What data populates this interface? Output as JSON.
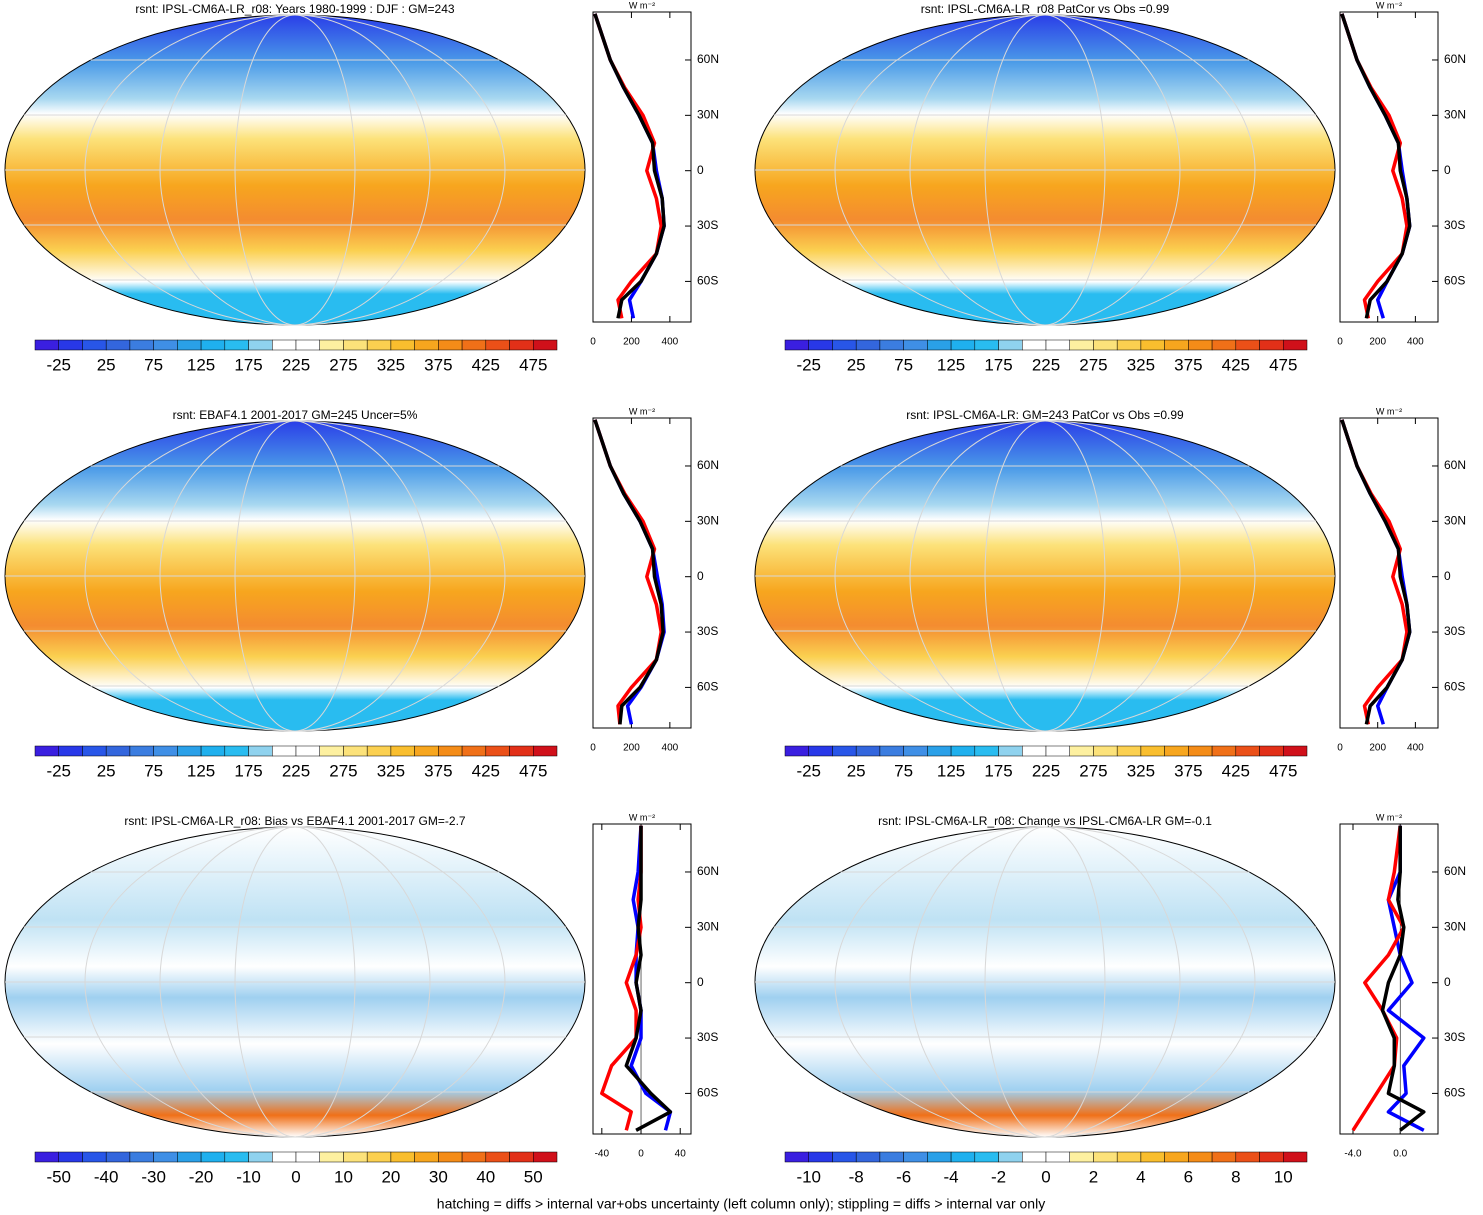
{
  "colormap": [
    "#3a1fe0",
    "#2838e8",
    "#2856e8",
    "#3366dd",
    "#3b7de0",
    "#3f8fe6",
    "#2aa0e8",
    "#1fb0ee",
    "#29bcf0",
    "#8fd2ee",
    "#ffffff",
    "#ffffff",
    "#fdf0a0",
    "#fce27a",
    "#fbd050",
    "#f9be2e",
    "#f7a61e",
    "#f48c18",
    "#f07018",
    "#eb5018",
    "#e23018",
    "#d0101a"
  ],
  "footer": "hatching = diffs > internal var+obs uncertainty (left column only); stippling = diffs > internal var only",
  "chart_data": [
    {
      "type": "map",
      "title": "rsnt: IPSL-CM6A-LR_r08: Years 1980-1999 : DJF : GM=243",
      "colorbar_labels": [
        -25,
        25,
        75,
        125,
        175,
        225,
        275,
        325,
        375,
        425,
        475
      ],
      "profile": {
        "type": "line",
        "unit": "W m⁻²",
        "lat": [
          -80,
          -70,
          -60,
          -45,
          -30,
          -15,
          0,
          15,
          30,
          45,
          60,
          85
        ],
        "ylim": [
          -82,
          86
        ],
        "yticks": [
          {
            "value": 60,
            "label": "60N"
          },
          {
            "value": 30,
            "label": "30N"
          },
          0,
          {
            "value": -30,
            "label": "30S"
          },
          {
            "value": -60,
            "label": "60S"
          }
        ],
        "xlim": [
          0,
          510
        ],
        "xticks": [
          0,
          200,
          400
        ],
        "series": [
          {
            "color": "#0000ff",
            "values": [
              210,
              190,
              250,
              330,
              370,
              360,
              330,
              310,
              240,
              160,
              90,
              10
            ]
          },
          {
            "color": "#ff0000",
            "values": [
              150,
              130,
              200,
              330,
              355,
              330,
              280,
              320,
              260,
              165,
              90,
              10
            ]
          },
          {
            "color": "#000000",
            "values": [
              130,
              150,
              250,
              330,
              370,
              360,
              320,
              310,
              240,
              160,
              90,
              10
            ]
          }
        ]
      }
    },
    {
      "type": "map",
      "title": "rsnt: IPSL-CM6A-LR_r08 PatCor vs Obs =0.99",
      "colorbar_labels": [
        -25,
        25,
        75,
        125,
        175,
        225,
        275,
        325,
        375,
        425,
        475
      ],
      "profile": {
        "type": "line",
        "unit": "W m⁻²",
        "lat": [
          -80,
          -70,
          -60,
          -45,
          -30,
          -15,
          0,
          15,
          30,
          45,
          60,
          85
        ],
        "ylim": [
          -82,
          86
        ],
        "yticks": [
          {
            "value": 60,
            "label": "60N"
          },
          {
            "value": 30,
            "label": "30N"
          },
          0,
          {
            "value": -30,
            "label": "30S"
          },
          {
            "value": -60,
            "label": "60S"
          }
        ],
        "xlim": [
          0,
          520
        ],
        "xticks": [
          0,
          200,
          400
        ],
        "series": [
          {
            "color": "#0000ff",
            "values": [
              230,
              200,
              250,
              330,
              370,
              355,
              330,
              310,
              240,
              160,
              90,
              10
            ]
          },
          {
            "color": "#ff0000",
            "values": [
              150,
              130,
              200,
              330,
              355,
              330,
              280,
              320,
              260,
              165,
              90,
              10
            ]
          },
          {
            "color": "#000000",
            "values": [
              140,
              160,
              250,
              330,
              370,
              355,
              320,
              310,
              240,
              160,
              90,
              10
            ]
          }
        ]
      }
    },
    {
      "type": "map",
      "title": "rsnt: EBAF4.1 2001-2017 GM=245 Uncer=5%",
      "colorbar_labels": [
        -25,
        25,
        75,
        125,
        175,
        225,
        275,
        325,
        375,
        425,
        475
      ],
      "profile": {
        "type": "line",
        "unit": "W m⁻²",
        "lat": [
          -80,
          -70,
          -60,
          -45,
          -30,
          -15,
          0,
          15,
          30,
          45,
          60,
          85
        ],
        "ylim": [
          -82,
          86
        ],
        "yticks": [
          {
            "value": 60,
            "label": "60N"
          },
          {
            "value": 30,
            "label": "30N"
          },
          0,
          {
            "value": -30,
            "label": "30S"
          },
          {
            "value": -60,
            "label": "60S"
          }
        ],
        "xlim": [
          0,
          510
        ],
        "xticks": [
          0,
          200,
          400
        ],
        "series": [
          {
            "color": "#0000ff",
            "values": [
              200,
              180,
              250,
              330,
              370,
              360,
              335,
              310,
              245,
              160,
              90,
              10
            ]
          },
          {
            "color": "#ff0000",
            "values": [
              140,
              130,
              200,
              330,
              355,
              330,
              280,
              320,
              260,
              165,
              90,
              10
            ]
          },
          {
            "color": "#000000",
            "values": [
              140,
              150,
              245,
              330,
              365,
              355,
              320,
              310,
              245,
              160,
              90,
              10
            ]
          }
        ]
      }
    },
    {
      "type": "map",
      "title": "rsnt: IPSL-CM6A-LR: GM=243 PatCor vs Obs =0.99",
      "colorbar_labels": [
        -25,
        25,
        75,
        125,
        175,
        225,
        275,
        325,
        375,
        425,
        475
      ],
      "profile": {
        "type": "line",
        "unit": "W m⁻²",
        "lat": [
          -80,
          -70,
          -60,
          -45,
          -30,
          -15,
          0,
          15,
          30,
          45,
          60,
          85
        ],
        "ylim": [
          -82,
          86
        ],
        "yticks": [
          {
            "value": 60,
            "label": "60N"
          },
          {
            "value": 30,
            "label": "30N"
          },
          0,
          {
            "value": -30,
            "label": "30S"
          },
          {
            "value": -60,
            "label": "60S"
          }
        ],
        "xlim": [
          0,
          520
        ],
        "xticks": [
          0,
          200,
          400
        ],
        "series": [
          {
            "color": "#0000ff",
            "values": [
              230,
              200,
              250,
              330,
              370,
              355,
              330,
              310,
              240,
              160,
              90,
              10
            ]
          },
          {
            "color": "#ff0000",
            "values": [
              150,
              130,
              200,
              330,
              355,
              330,
              280,
              320,
              260,
              165,
              90,
              10
            ]
          },
          {
            "color": "#000000",
            "values": [
              140,
              160,
              250,
              330,
              370,
              355,
              320,
              310,
              240,
              160,
              90,
              10
            ]
          }
        ]
      }
    },
    {
      "type": "map",
      "title": "rsnt: IPSL-CM6A-LR_r08: Bias vs EBAF4.1 2001-2017 GM=-2.7",
      "colorbar_labels": [
        -50,
        -40,
        -30,
        -20,
        -10,
        0,
        10,
        20,
        30,
        40,
        50
      ],
      "profile": {
        "type": "line",
        "unit": "W m⁻²",
        "lat": [
          -80,
          -70,
          -60,
          -45,
          -30,
          -15,
          0,
          15,
          30,
          45,
          60,
          85
        ],
        "ylim": [
          -82,
          86
        ],
        "yticks": [
          {
            "value": 60,
            "label": "60N"
          },
          {
            "value": 30,
            "label": "30N"
          },
          0,
          {
            "value": -30,
            "label": "30S"
          },
          {
            "value": -60,
            "label": "60S"
          }
        ],
        "xlim": [
          -49,
          51
        ],
        "xticks": [
          -40,
          0,
          40
        ],
        "series": [
          {
            "color": "#0000ff",
            "values": [
              25,
              30,
              5,
              -10,
              0,
              0,
              -5,
              -5,
              -3,
              -8,
              -3,
              0
            ]
          },
          {
            "color": "#ff0000",
            "values": [
              -15,
              -10,
              -40,
              -30,
              -5,
              -5,
              -15,
              -5,
              0,
              -3,
              0,
              0
            ]
          },
          {
            "color": "#000000",
            "values": [
              -5,
              30,
              10,
              -15,
              -5,
              0,
              -5,
              0,
              -3,
              0,
              0,
              0
            ]
          }
        ]
      }
    },
    {
      "type": "map",
      "title": "rsnt: IPSL-CM6A-LR_r08: Change vs IPSL-CM6A-LR GM=-0.1",
      "colorbar_labels": [
        -10,
        -8,
        -6,
        -4,
        -2,
        0,
        2,
        4,
        6,
        8,
        10
      ],
      "profile": {
        "type": "line",
        "unit": "W m⁻²",
        "lat": [
          -80,
          -70,
          -60,
          -45,
          -30,
          -15,
          0,
          15,
          30,
          45,
          60,
          85
        ],
        "ylim": [
          -82,
          86
        ],
        "yticks": [
          {
            "value": 60,
            "label": "60N"
          },
          {
            "value": 30,
            "label": "30N"
          },
          0,
          {
            "value": -30,
            "label": "30S"
          },
          {
            "value": -60,
            "label": "60S"
          }
        ],
        "xlim": [
          -5.1,
          3.2
        ],
        "xticks": [
          {
            "value": -4,
            "label": "-4.0"
          },
          {
            "value": 0,
            "label": "0.0"
          }
        ],
        "series": [
          {
            "color": "#0000ff",
            "values": [
              2,
              -1,
              0.5,
              0.3,
              2,
              -1,
              1,
              0,
              -0.5,
              -1,
              0,
              0
            ]
          },
          {
            "color": "#ff0000",
            "values": [
              -4,
              -3,
              -2,
              -0.5,
              -0.3,
              -1.5,
              -3,
              -1,
              0.3,
              -1,
              -0.5,
              0
            ]
          },
          {
            "color": "#000000",
            "values": [
              0,
              2,
              -1,
              -0.5,
              -0.5,
              -1.5,
              -1,
              0,
              0.3,
              -0.2,
              0,
              0
            ]
          }
        ]
      }
    }
  ]
}
